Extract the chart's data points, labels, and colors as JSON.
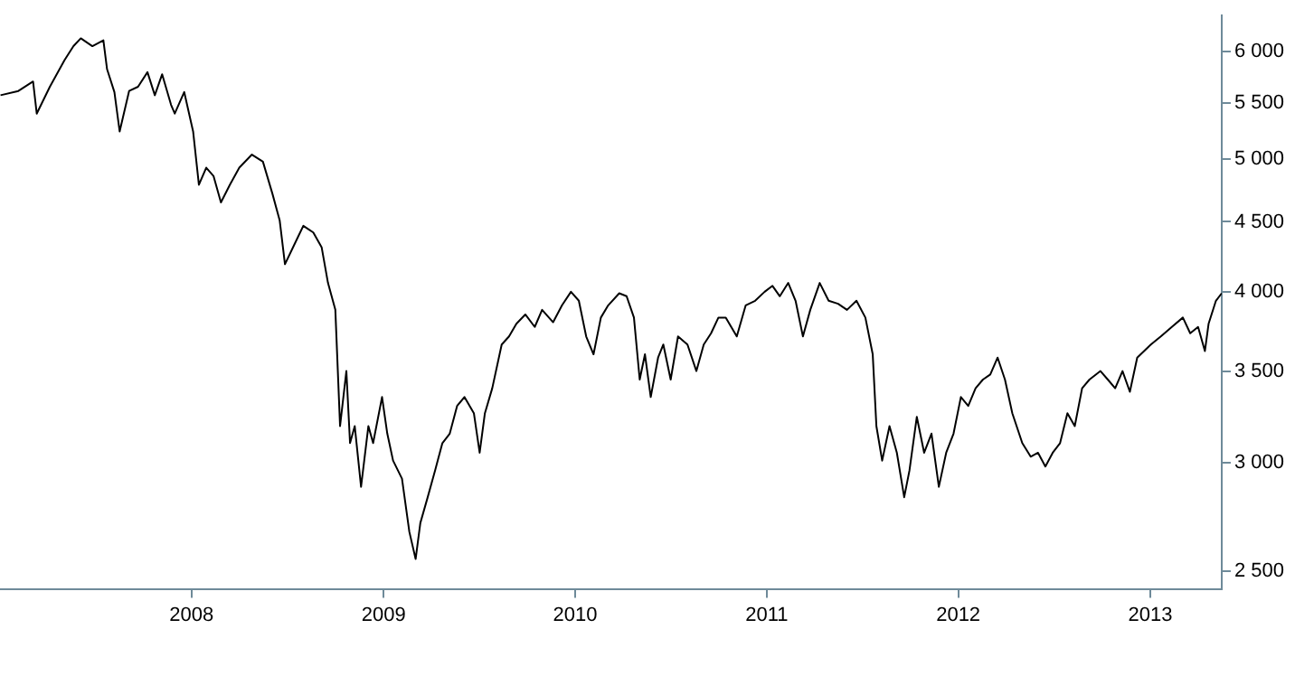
{
  "chart_data": {
    "type": "line",
    "log": "y",
    "marker": "none",
    "line_style": "solid",
    "color": "#000000",
    "x": [
      "2007-01-02",
      "2007-02-05",
      "2007-03-05",
      "2007-03-12",
      "2007-04-06",
      "2007-05-04",
      "2007-05-21",
      "2007-06-04",
      "2007-06-26",
      "2007-07-17",
      "2007-07-24",
      "2007-08-07",
      "2007-08-17",
      "2007-09-04",
      "2007-09-21",
      "2007-10-09",
      "2007-10-23",
      "2007-11-06",
      "2007-11-23",
      "2007-11-30",
      "2007-12-18",
      "2008-01-04",
      "2008-01-15",
      "2008-01-29",
      "2008-02-12",
      "2008-02-26",
      "2008-03-14",
      "2008-04-01",
      "2008-04-25",
      "2008-05-16",
      "2008-06-03",
      "2008-06-17",
      "2008-06-27",
      "2008-07-16",
      "2008-08-01",
      "2008-08-20",
      "2008-09-05",
      "2008-09-17",
      "2008-10-01",
      "2008-10-10",
      "2008-10-22",
      "2008-10-29",
      "2008-11-07",
      "2008-11-19",
      "2008-12-03",
      "2008-12-12",
      "2008-12-29",
      "2009-01-08",
      "2009-01-19",
      "2009-02-05",
      "2009-02-19",
      "2009-03-03",
      "2009-03-12",
      "2009-03-26",
      "2009-04-09",
      "2009-04-23",
      "2009-05-07",
      "2009-05-21",
      "2009-06-04",
      "2009-06-22",
      "2009-07-03",
      "2009-07-13",
      "2009-07-27",
      "2009-08-14",
      "2009-08-28",
      "2009-09-11",
      "2009-09-28",
      "2009-10-16",
      "2009-10-30",
      "2009-11-20",
      "2009-12-07",
      "2009-12-24",
      "2010-01-08",
      "2010-01-22",
      "2010-02-05",
      "2010-02-19",
      "2010-03-05",
      "2010-03-26",
      "2010-04-09",
      "2010-04-23",
      "2010-05-04",
      "2010-05-14",
      "2010-05-25",
      "2010-06-08",
      "2010-06-18",
      "2010-07-02",
      "2010-07-16",
      "2010-08-03",
      "2010-08-20",
      "2010-09-03",
      "2010-09-17",
      "2010-10-01",
      "2010-10-15",
      "2010-11-05",
      "2010-11-22",
      "2010-12-10",
      "2010-12-28",
      "2011-01-12",
      "2011-01-26",
      "2011-02-11",
      "2011-02-25",
      "2011-03-11",
      "2011-03-25",
      "2011-04-12",
      "2011-04-29",
      "2011-05-17",
      "2011-06-03",
      "2011-06-21",
      "2011-07-08",
      "2011-07-22",
      "2011-07-29",
      "2011-08-09",
      "2011-08-23",
      "2011-09-06",
      "2011-09-20",
      "2011-09-30",
      "2011-10-14",
      "2011-10-28",
      "2011-11-11",
      "2011-11-25",
      "2011-12-09",
      "2011-12-23",
      "2012-01-06",
      "2012-01-20",
      "2012-02-03",
      "2012-02-17",
      "2012-03-02",
      "2012-03-16",
      "2012-03-30",
      "2012-04-13",
      "2012-05-02",
      "2012-05-18",
      "2012-06-01",
      "2012-06-15",
      "2012-06-29",
      "2012-07-13",
      "2012-07-27",
      "2012-08-10",
      "2012-08-24",
      "2012-09-07",
      "2012-09-28",
      "2012-10-12",
      "2012-10-26",
      "2012-11-09",
      "2012-11-23",
      "2012-12-07",
      "2013-01-02",
      "2013-01-21",
      "2013-02-11",
      "2013-03-04",
      "2013-03-18",
      "2013-04-02",
      "2013-04-15",
      "2013-04-22",
      "2013-05-06",
      "2013-05-17"
    ],
    "values": [
      5570,
      5610,
      5700,
      5400,
      5650,
      5910,
      6050,
      6130,
      6050,
      6110,
      5820,
      5600,
      5240,
      5610,
      5650,
      5790,
      5570,
      5770,
      5480,
      5400,
      5600,
      5240,
      4790,
      4930,
      4860,
      4650,
      4790,
      4930,
      5040,
      4980,
      4720,
      4510,
      4190,
      4340,
      4470,
      4420,
      4310,
      4060,
      3880,
      3190,
      3500,
      3100,
      3190,
      2880,
      3190,
      3100,
      3350,
      3150,
      3010,
      2920,
      2670,
      2550,
      2710,
      2830,
      2960,
      3100,
      3150,
      3300,
      3350,
      3260,
      3050,
      3260,
      3400,
      3660,
      3710,
      3790,
      3850,
      3770,
      3880,
      3800,
      3910,
      4000,
      3940,
      3710,
      3600,
      3830,
      3910,
      3990,
      3970,
      3830,
      3450,
      3600,
      3350,
      3580,
      3660,
      3450,
      3710,
      3660,
      3500,
      3660,
      3730,
      3830,
      3830,
      3710,
      3910,
      3940,
      4000,
      4040,
      3970,
      4060,
      3940,
      3710,
      3880,
      4060,
      3940,
      3920,
      3880,
      3940,
      3830,
      3600,
      3190,
      3010,
      3190,
      3050,
      2830,
      2960,
      3240,
      3050,
      3150,
      2880,
      3050,
      3150,
      3350,
      3300,
      3400,
      3450,
      3480,
      3580,
      3450,
      3260,
      3100,
      3030,
      3050,
      2980,
      3050,
      3100,
      3260,
      3190,
      3400,
      3450,
      3500,
      3450,
      3400,
      3500,
      3380,
      3580,
      3660,
      3710,
      3770,
      3830,
      3730,
      3770,
      3620,
      3790,
      3940,
      3990
    ],
    "xlim": [
      "2007-01-01",
      "2013-05-17"
    ],
    "xticks": [
      {
        "value": "2008-01-01",
        "label": "2008"
      },
      {
        "value": "2009-01-01",
        "label": "2009"
      },
      {
        "value": "2010-01-01",
        "label": "2010"
      },
      {
        "value": "2011-01-01",
        "label": "2011"
      },
      {
        "value": "2012-01-01",
        "label": "2012"
      },
      {
        "value": "2013-01-01",
        "label": "2013"
      }
    ],
    "ylim": [
      2425,
      6370
    ],
    "yticks": [
      {
        "value": 2500,
        "label": "2 500"
      },
      {
        "value": 3000,
        "label": "3 000"
      },
      {
        "value": 3500,
        "label": "3 500"
      },
      {
        "value": 4000,
        "label": "4 000"
      },
      {
        "value": 4500,
        "label": "4 500"
      },
      {
        "value": 5000,
        "label": "5 000"
      },
      {
        "value": 5500,
        "label": "5 500"
      },
      {
        "value": 6000,
        "label": "6 000"
      }
    ]
  }
}
